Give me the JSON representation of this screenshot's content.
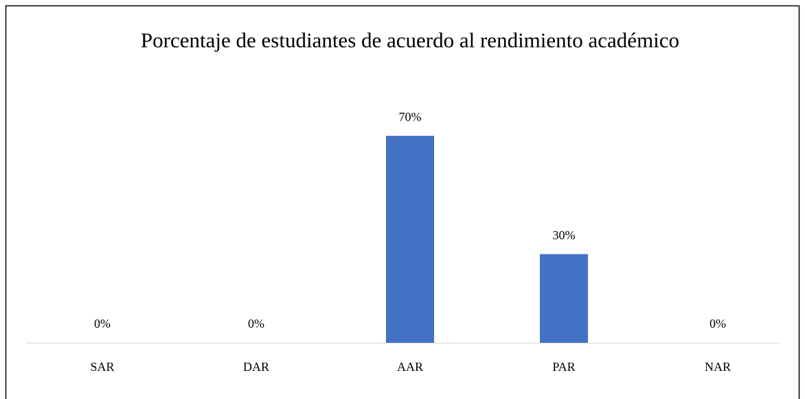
{
  "chart_data": {
    "type": "bar",
    "title": "Porcentaje de estudiantes de acuerdo al rendimiento académico",
    "categories": [
      "SAR",
      "DAR",
      "AAR",
      "PAR",
      "NAR"
    ],
    "values": [
      0,
      0,
      70,
      30,
      0
    ],
    "value_labels": [
      "0%",
      "0%",
      "70%",
      "30%",
      "0%"
    ],
    "color": "#4472c4",
    "ylim": [
      0,
      80
    ]
  }
}
